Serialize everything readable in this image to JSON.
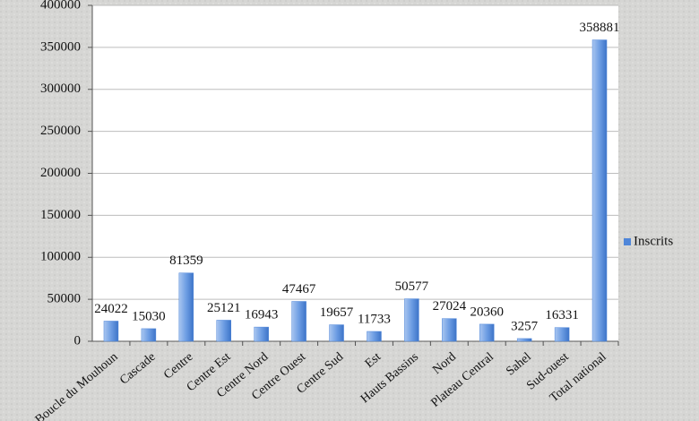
{
  "chart_data": {
    "type": "bar",
    "categories": [
      "Boucle du Mouhoun",
      "Cascade",
      "Centre",
      "Centre Est",
      "Centre Nord",
      "Centre Ouest",
      "Centre Sud",
      "Est",
      "Hauts Bassins",
      "Nord",
      "Plateau Central",
      "Sahel",
      "Sud-ouest",
      "Total national"
    ],
    "series": [
      {
        "name": "Inscrits",
        "color": "#4f86d9",
        "values": [
          24022,
          15030,
          81359,
          25121,
          16943,
          47467,
          19657,
          11733,
          50577,
          27024,
          20360,
          3257,
          16331,
          358881
        ]
      }
    ],
    "ylim": [
      0,
      400000
    ],
    "yticks": [
      0,
      50000,
      100000,
      150000,
      200000,
      250000,
      300000,
      350000,
      400000
    ],
    "grid": true,
    "legend": "right"
  }
}
